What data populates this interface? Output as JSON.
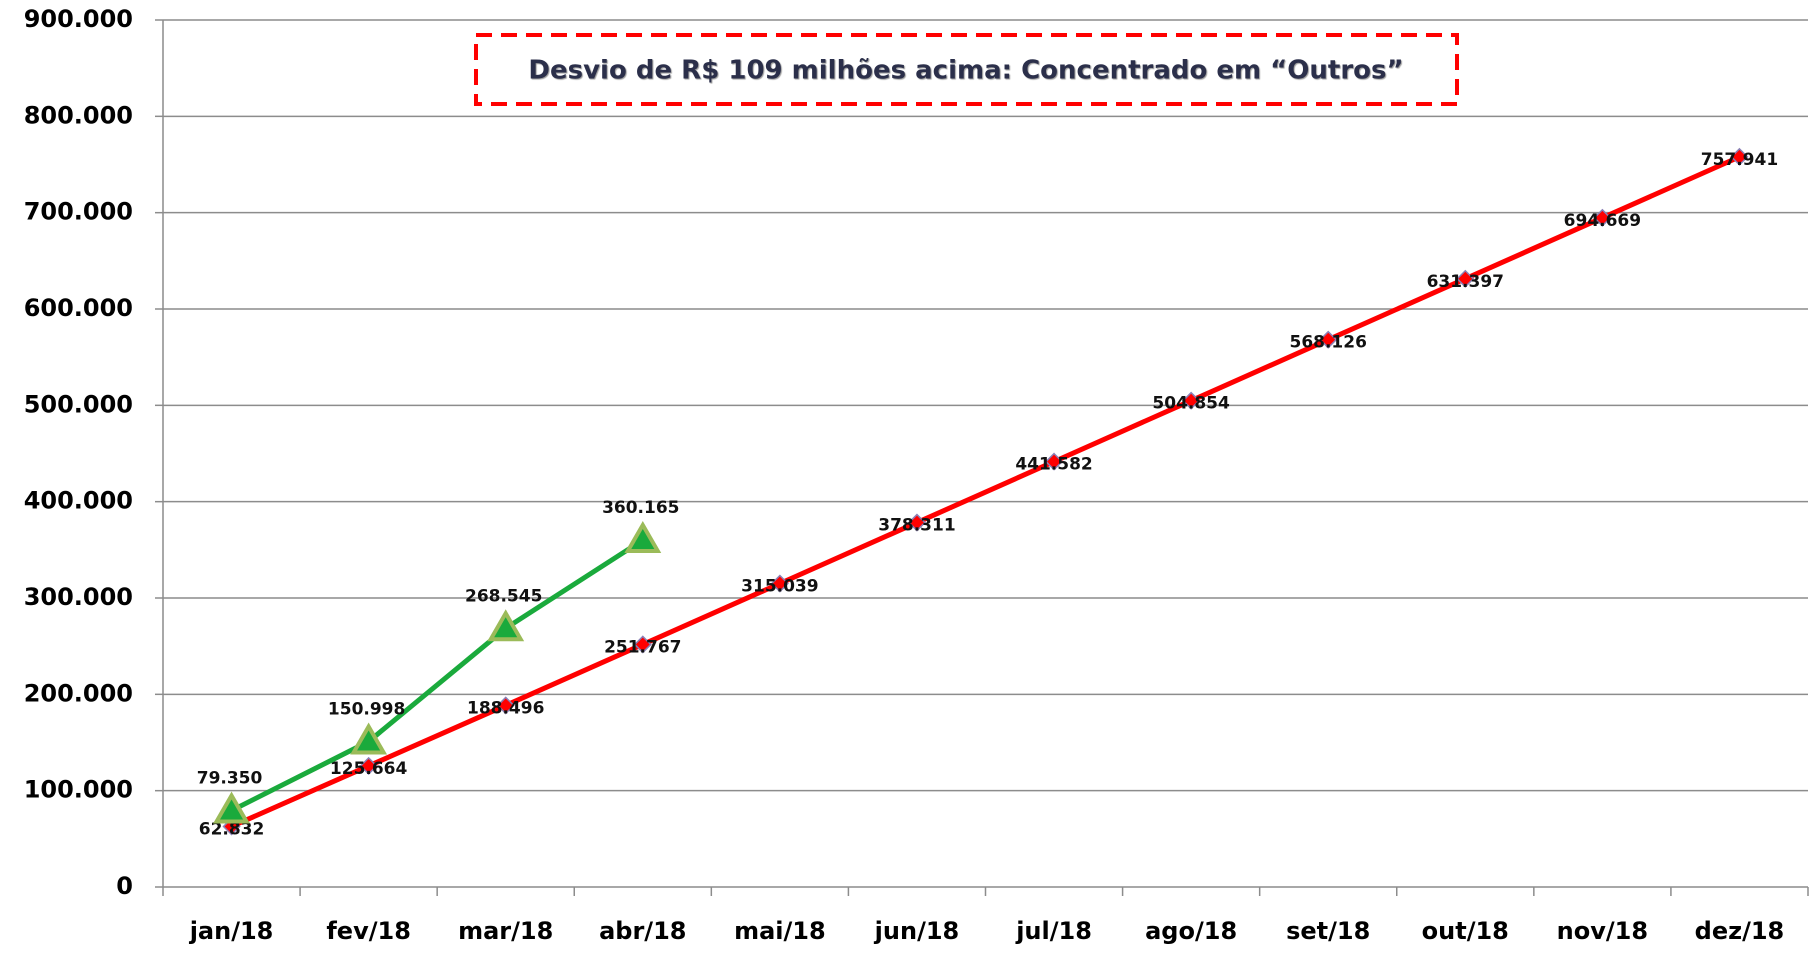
{
  "chart_data": {
    "type": "line",
    "annotation": "Desvio de R$ 109 milhões acima: Concentrado em “Outros”",
    "categories": [
      "jan/18",
      "fev/18",
      "mar/18",
      "abr/18",
      "mai/18",
      "jun/18",
      "jul/18",
      "ago/18",
      "set/18",
      "out/18",
      "nov/18",
      "dez/18"
    ],
    "series": [
      {
        "color": "#ff0000",
        "marker": "diamond",
        "values": [
          62832,
          125664,
          188496,
          251767,
          315039,
          378311,
          441582,
          504854,
          568126,
          631397,
          694669,
          757941
        ],
        "value_labels": [
          "62.832",
          "125.664",
          "188.496",
          "251.767",
          "315.039",
          "378.311",
          "441.582",
          "504.854",
          "568.126",
          "631.397",
          "694.669",
          "757.941"
        ]
      },
      {
        "color": "#1aaa3c",
        "marker": "triangle",
        "values": [
          79350,
          150998,
          268545,
          360165,
          null,
          null,
          null,
          null,
          null,
          null,
          null,
          null
        ],
        "value_labels": [
          "79.350",
          "150.998",
          "268.545",
          "360.165",
          null,
          null,
          null,
          null,
          null,
          null,
          null,
          null
        ]
      }
    ],
    "ylim": [
      0,
      900000
    ],
    "yticks": [
      0,
      {
        "value": 100000,
        "label": "100.000"
      },
      {
        "value": 200000,
        "label": "200.000"
      },
      {
        "value": 300000,
        "label": "300.000"
      },
      {
        "value": 400000,
        "label": "400.000"
      },
      {
        "value": 500000,
        "label": "500.000"
      },
      {
        "value": 600000,
        "label": "600.000"
      },
      {
        "value": 700000,
        "label": "700.000"
      },
      {
        "value": 800000,
        "label": "800.000"
      },
      {
        "value": 900000,
        "label": "900.000"
      }
    ],
    "grid": true
  }
}
